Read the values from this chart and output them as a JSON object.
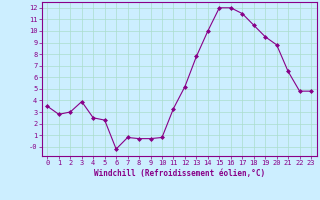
{
  "xlabel": "Windchill (Refroidissement éolien,°C)",
  "x_values": [
    0,
    1,
    2,
    3,
    4,
    5,
    6,
    7,
    8,
    9,
    10,
    11,
    12,
    13,
    14,
    15,
    16,
    17,
    18,
    19,
    20,
    21,
    22,
    23
  ],
  "y_values": [
    3.5,
    2.8,
    3.0,
    3.9,
    2.5,
    2.3,
    -0.2,
    0.8,
    0.7,
    0.7,
    0.8,
    3.3,
    5.2,
    7.8,
    10.0,
    12.0,
    12.0,
    11.5,
    10.5,
    9.5,
    8.8,
    6.5,
    4.8,
    4.8
  ],
  "line_color": "#880088",
  "marker": "D",
  "marker_size": 2.0,
  "bg_color": "#cceeff",
  "grid_color": "#aaddcc",
  "tick_color": "#880088",
  "label_color": "#880088",
  "ylim": [
    -0.8,
    12.5
  ],
  "xlim": [
    -0.5,
    23.5
  ],
  "yticks": [
    0,
    1,
    2,
    3,
    4,
    5,
    6,
    7,
    8,
    9,
    10,
    11,
    12
  ],
  "xticks": [
    0,
    1,
    2,
    3,
    4,
    5,
    6,
    7,
    8,
    9,
    10,
    11,
    12,
    13,
    14,
    15,
    16,
    17,
    18,
    19,
    20,
    21,
    22,
    23
  ],
  "tick_fontsize": 5.0,
  "xlabel_fontsize": 5.5
}
